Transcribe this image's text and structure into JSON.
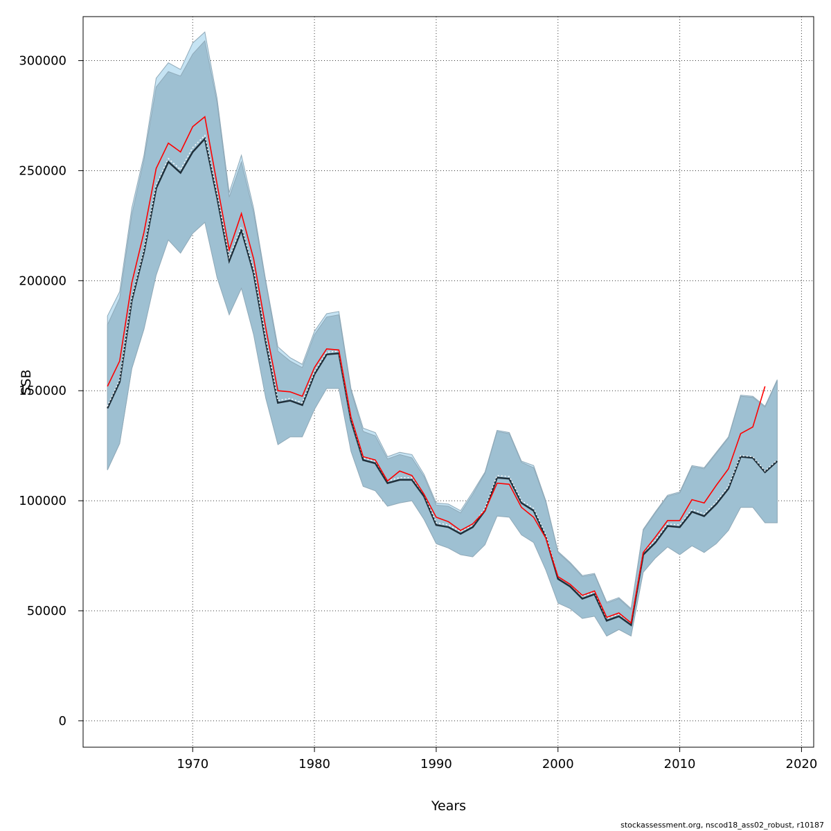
{
  "chart_data": {
    "type": "line",
    "xlabel": "Years",
    "ylabel": "SSB",
    "xlim": [
      1961,
      2021
    ],
    "ylim": [
      -12000,
      320000
    ],
    "x_ticks": [
      1970,
      1980,
      1990,
      2000,
      2010,
      2020
    ],
    "y_ticks": [
      0,
      50000,
      100000,
      150000,
      200000,
      250000,
      300000
    ],
    "grid": true,
    "x": [
      1963,
      1964,
      1965,
      1966,
      1967,
      1968,
      1969,
      1970,
      1971,
      1972,
      1973,
      1974,
      1975,
      1976,
      1977,
      1978,
      1979,
      1980,
      1981,
      1982,
      1983,
      1984,
      1985,
      1986,
      1987,
      1988,
      1989,
      1990,
      1991,
      1992,
      1993,
      1994,
      1995,
      1996,
      1997,
      1998,
      1999,
      2000,
      2001,
      2002,
      2003,
      2004,
      2005,
      2006,
      2007,
      2008,
      2009,
      2010,
      2011,
      2012,
      2013,
      2014,
      2015,
      2016,
      2017,
      2018
    ],
    "series": [
      {
        "role": "band-light",
        "color": "#c5e3f3",
        "upper": [
          184000,
          195000,
          233000,
          257000,
          292000,
          299000,
          296000,
          308000,
          313000,
          283000,
          240000,
          257000,
          233000,
          200000,
          170000,
          165000,
          162000,
          177000,
          185000,
          186000,
          151000,
          133000,
          131000,
          120000,
          122000,
          121000,
          112000,
          99000,
          98500,
          95500,
          104000,
          113000,
          132000,
          131000,
          118000,
          116000,
          100000,
          77000,
          72000,
          66000,
          67000,
          54000,
          56000,
          51000,
          87000,
          95000,
          102500,
          104000,
          116000,
          115000,
          122000,
          129000,
          148000,
          147500,
          143000,
          155000
        ],
        "lower": [
          114000,
          126000,
          160000,
          178000,
          203000,
          219000,
          213000,
          222000,
          227000,
          202000,
          185000,
          197000,
          176000,
          147000,
          126000,
          129500,
          129500,
          142000,
          151500,
          151500,
          123000,
          107000,
          105000,
          98000,
          99500,
          100500,
          92000,
          81000,
          79000,
          76000,
          75000,
          80500,
          93500,
          93000,
          85000,
          81500,
          69000,
          54000,
          51500,
          47000,
          48000,
          38500,
          41500,
          39000,
          67500,
          74000,
          79000,
          76000,
          80000,
          76500,
          81000,
          87000,
          97000,
          97000,
          90000,
          90000
        ]
      },
      {
        "role": "band",
        "color": "#9ec0d2",
        "upper": [
          180000,
          192000,
          230000,
          255000,
          288000,
          295000,
          293000,
          303000,
          309000,
          281000,
          238000,
          254000,
          231000,
          199000,
          168000,
          163500,
          160500,
          175500,
          183500,
          184500,
          150000,
          131500,
          129500,
          119000,
          121000,
          119500,
          111000,
          98000,
          97500,
          94500,
          103000,
          112500,
          131500,
          130500,
          117500,
          115000,
          99500,
          76500,
          71500,
          65500,
          66500,
          53500,
          55500,
          50500,
          86500,
          94500,
          102000,
          103500,
          115500,
          114500,
          121500,
          128500,
          147500,
          147000,
          142500,
          154500
        ],
        "lower": [
          114000,
          126000,
          160000,
          178000,
          202500,
          218500,
          212500,
          221500,
          226500,
          201500,
          184500,
          196500,
          175500,
          146500,
          125500,
          129000,
          129000,
          141500,
          151000,
          151000,
          122500,
          106500,
          104500,
          97500,
          99000,
          100000,
          91500,
          80500,
          78500,
          75500,
          74500,
          80000,
          93000,
          92500,
          84500,
          81000,
          68500,
          53500,
          51000,
          46500,
          47500,
          38500,
          41500,
          38500,
          67500,
          74000,
          79000,
          75500,
          79500,
          76500,
          80500,
          86500,
          97000,
          97000,
          90000,
          90000
        ]
      },
      {
        "role": "mean-solid",
        "color": "#1f2f3a",
        "values": [
          142000,
          154000,
          191000,
          213000,
          242000,
          254000,
          249000,
          258500,
          264500,
          238000,
          209000,
          223000,
          203500,
          172000,
          144500,
          145500,
          143500,
          157500,
          166500,
          167000,
          136500,
          118500,
          117000,
          108000,
          109500,
          109500,
          102000,
          89000,
          88000,
          85000,
          88000,
          95500,
          110500,
          110000,
          99000,
          95500,
          83500,
          64500,
          61000,
          55500,
          57500,
          45500,
          47500,
          43500,
          75500,
          81000,
          88500,
          88000,
          95000,
          93000,
          98500,
          105500,
          120000,
          119500,
          113000,
          118000
        ]
      },
      {
        "role": "mean-dotted",
        "color": "#ffffff",
        "values": [
          143000,
          155000,
          192000,
          214000,
          243500,
          255500,
          250500,
          260500,
          266000,
          239500,
          210500,
          224500,
          205000,
          173500,
          145500,
          146500,
          144500,
          158500,
          167500,
          168000,
          137500,
          119500,
          118000,
          109000,
          110500,
          110500,
          103000,
          90000,
          89000,
          86000,
          89000,
          96500,
          111500,
          111000,
          100000,
          96500,
          84500,
          65500,
          62000,
          56500,
          58500,
          46500,
          48500,
          44500,
          76500,
          82000,
          89500,
          89000,
          96000,
          94000,
          99500,
          106500,
          120500,
          120000,
          113500,
          118500
        ]
      },
      {
        "role": "point-estimate",
        "color": "#ff0000",
        "values": [
          152000,
          163500,
          199000,
          222000,
          251000,
          262500,
          258500,
          270000,
          274500,
          244000,
          214000,
          230500,
          210000,
          178500,
          150000,
          149500,
          147500,
          160500,
          169000,
          168500,
          138000,
          120000,
          118500,
          109000,
          113500,
          111500,
          103000,
          92500,
          90500,
          86500,
          89500,
          95500,
          108000,
          107500,
          97000,
          92500,
          83000,
          65500,
          62000,
          57000,
          59000,
          47000,
          49000,
          44500,
          76500,
          83500,
          91000,
          91000,
          100500,
          99000,
          107000,
          114500,
          130500,
          133500,
          152000,
          null
        ]
      }
    ]
  },
  "footer": "stockassessment.org, nscod18_ass02_robust, r10187"
}
